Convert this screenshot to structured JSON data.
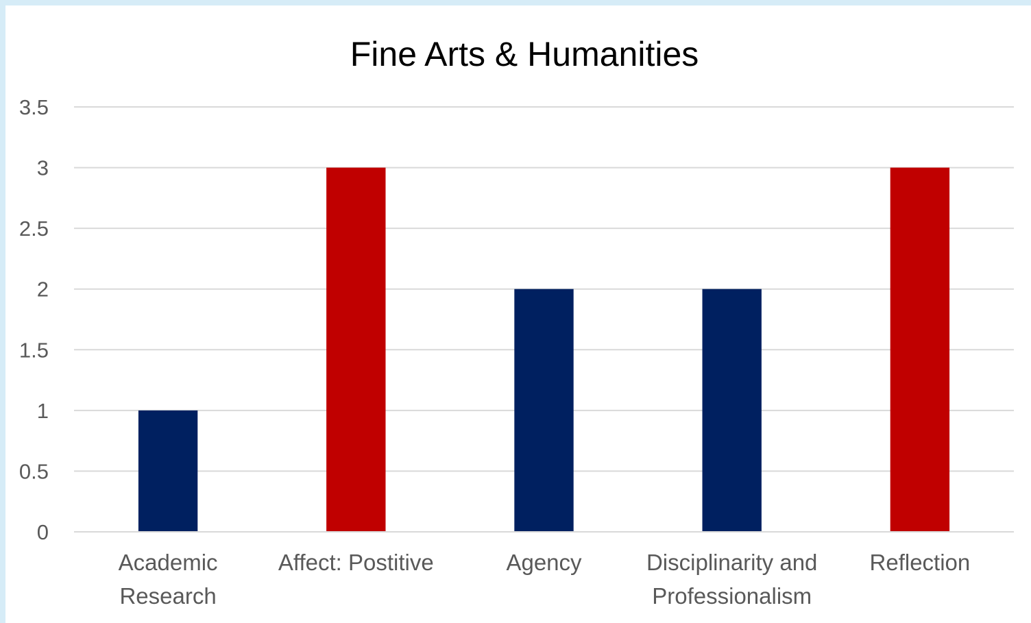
{
  "chart_data": {
    "type": "bar",
    "title": "Fine Arts & Humanities",
    "xlabel": "",
    "ylabel": "",
    "categories": [
      [
        "Academic",
        "Research"
      ],
      [
        "Affect: Postitive"
      ],
      [
        "Agency"
      ],
      [
        "Disciplinarity and",
        "Professionalism"
      ],
      [
        "Reflection"
      ]
    ],
    "values": [
      1,
      3,
      2,
      2,
      3
    ],
    "bar_colors": [
      "#002060",
      "#c00000",
      "#002060",
      "#002060",
      "#c00000"
    ],
    "ylim": [
      0,
      3.5
    ],
    "yticks": [
      "0",
      "0.5",
      "1",
      "1.5",
      "2",
      "2.5",
      "3",
      "3.5"
    ],
    "grid": true,
    "legend": "none"
  }
}
